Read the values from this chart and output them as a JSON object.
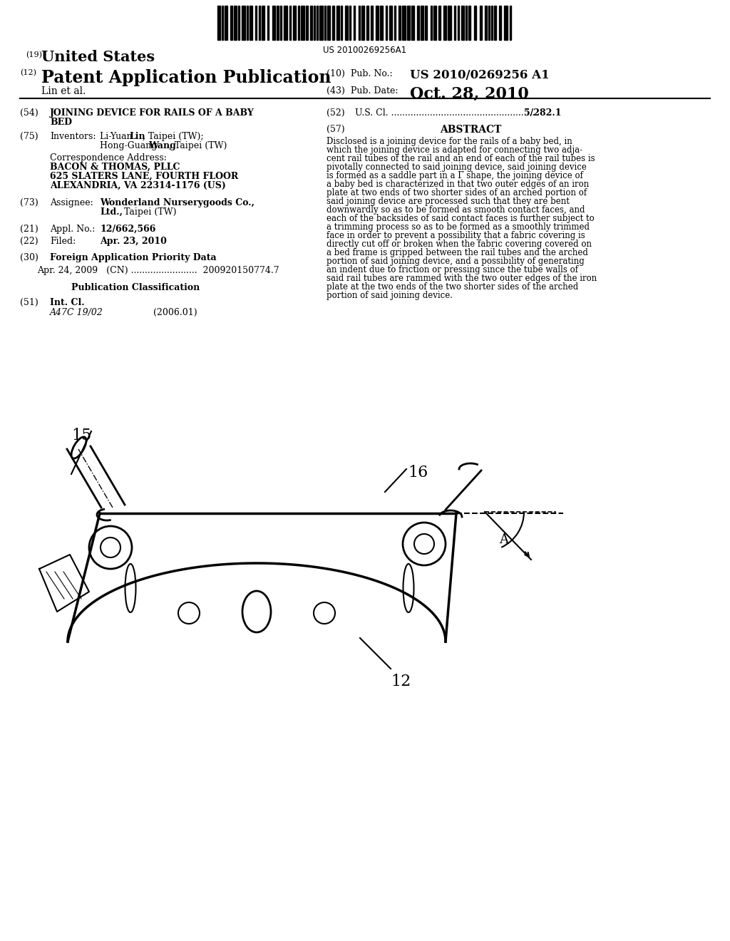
{
  "background_color": "#ffffff",
  "barcode_text": "US 20100269256A1",
  "header_line1_num": "(19)",
  "header_line1_text": "United States",
  "header_line2_num": "(12)",
  "header_line2_text": "Patent Application Publication",
  "header_line3": "Lin et al.",
  "pub_no_label": "(10)  Pub. No.:",
  "pub_no_value": "US 2010/0269256 A1",
  "pub_date_label": "(43)  Pub. Date:",
  "pub_date_value": "Oct. 28, 2010",
  "abstract_title": "ABSTRACT",
  "abstract_num": "(57)",
  "abstract_text": "Disclosed is a joining device for the rails of a baby bed, in which the joining device is adapted for connecting two adjacent rail tubes of the rail and an end of each of the rail tubes is pivotally connected to said joining device, said joining device is formed as a saddle part in a shape, the joining device of a baby bed is characterized in that two outer edges of an iron plate at two ends of two shorter sides of an arched portion of said joining device are processed such that they are bent downwardly so as to be formed as smooth contact faces, and each of the backsides of said contact faces is further subject to a trimming process so as to be formed as a smoothly trimmed face in order to prevent a possibility that a fabric covering is directly cut off or broken when the fabric covering covered on a bed frame is gripped between the rail tubes and the arched portion of said joining device, and a possibility of generating an indent due to friction or pressing since the tube walls of said rail tubes are rammed with the two outer edges of the iron plate at the two ends of the two shorter sides of the arched portion of said joining device.",
  "abstract_lines": [
    "Disclosed is a joining device for the rails of a baby bed, in",
    "which the joining device is adapted for connecting two adja-",
    "cent rail tubes of the rail and an end of each of the rail tubes is",
    "pivotally connected to said joining device, said joining device",
    "is formed as a saddle part in a Γ̅ shape, the joining device of",
    "a baby bed is characterized in that two outer edges of an iron",
    "plate at two ends of two shorter sides of an arched portion of",
    "said joining device are processed such that they are bent",
    "downwardly so as to be formed as smooth contact faces, and",
    "each of the backsides of said contact faces is further subject to",
    "a trimming process so as to be formed as a smoothly trimmed",
    "face in order to prevent a possibility that a fabric covering is",
    "directly cut off or broken when the fabric covering covered on",
    "a bed frame is gripped between the rail tubes and the arched",
    "portion of said joining device, and a possibility of generating",
    "an indent due to friction or pressing since the tube walls of",
    "said rail tubes are rammed with the two outer edges of the iron",
    "plate at the two ends of the two shorter sides of the arched",
    "portion of said joining device."
  ]
}
